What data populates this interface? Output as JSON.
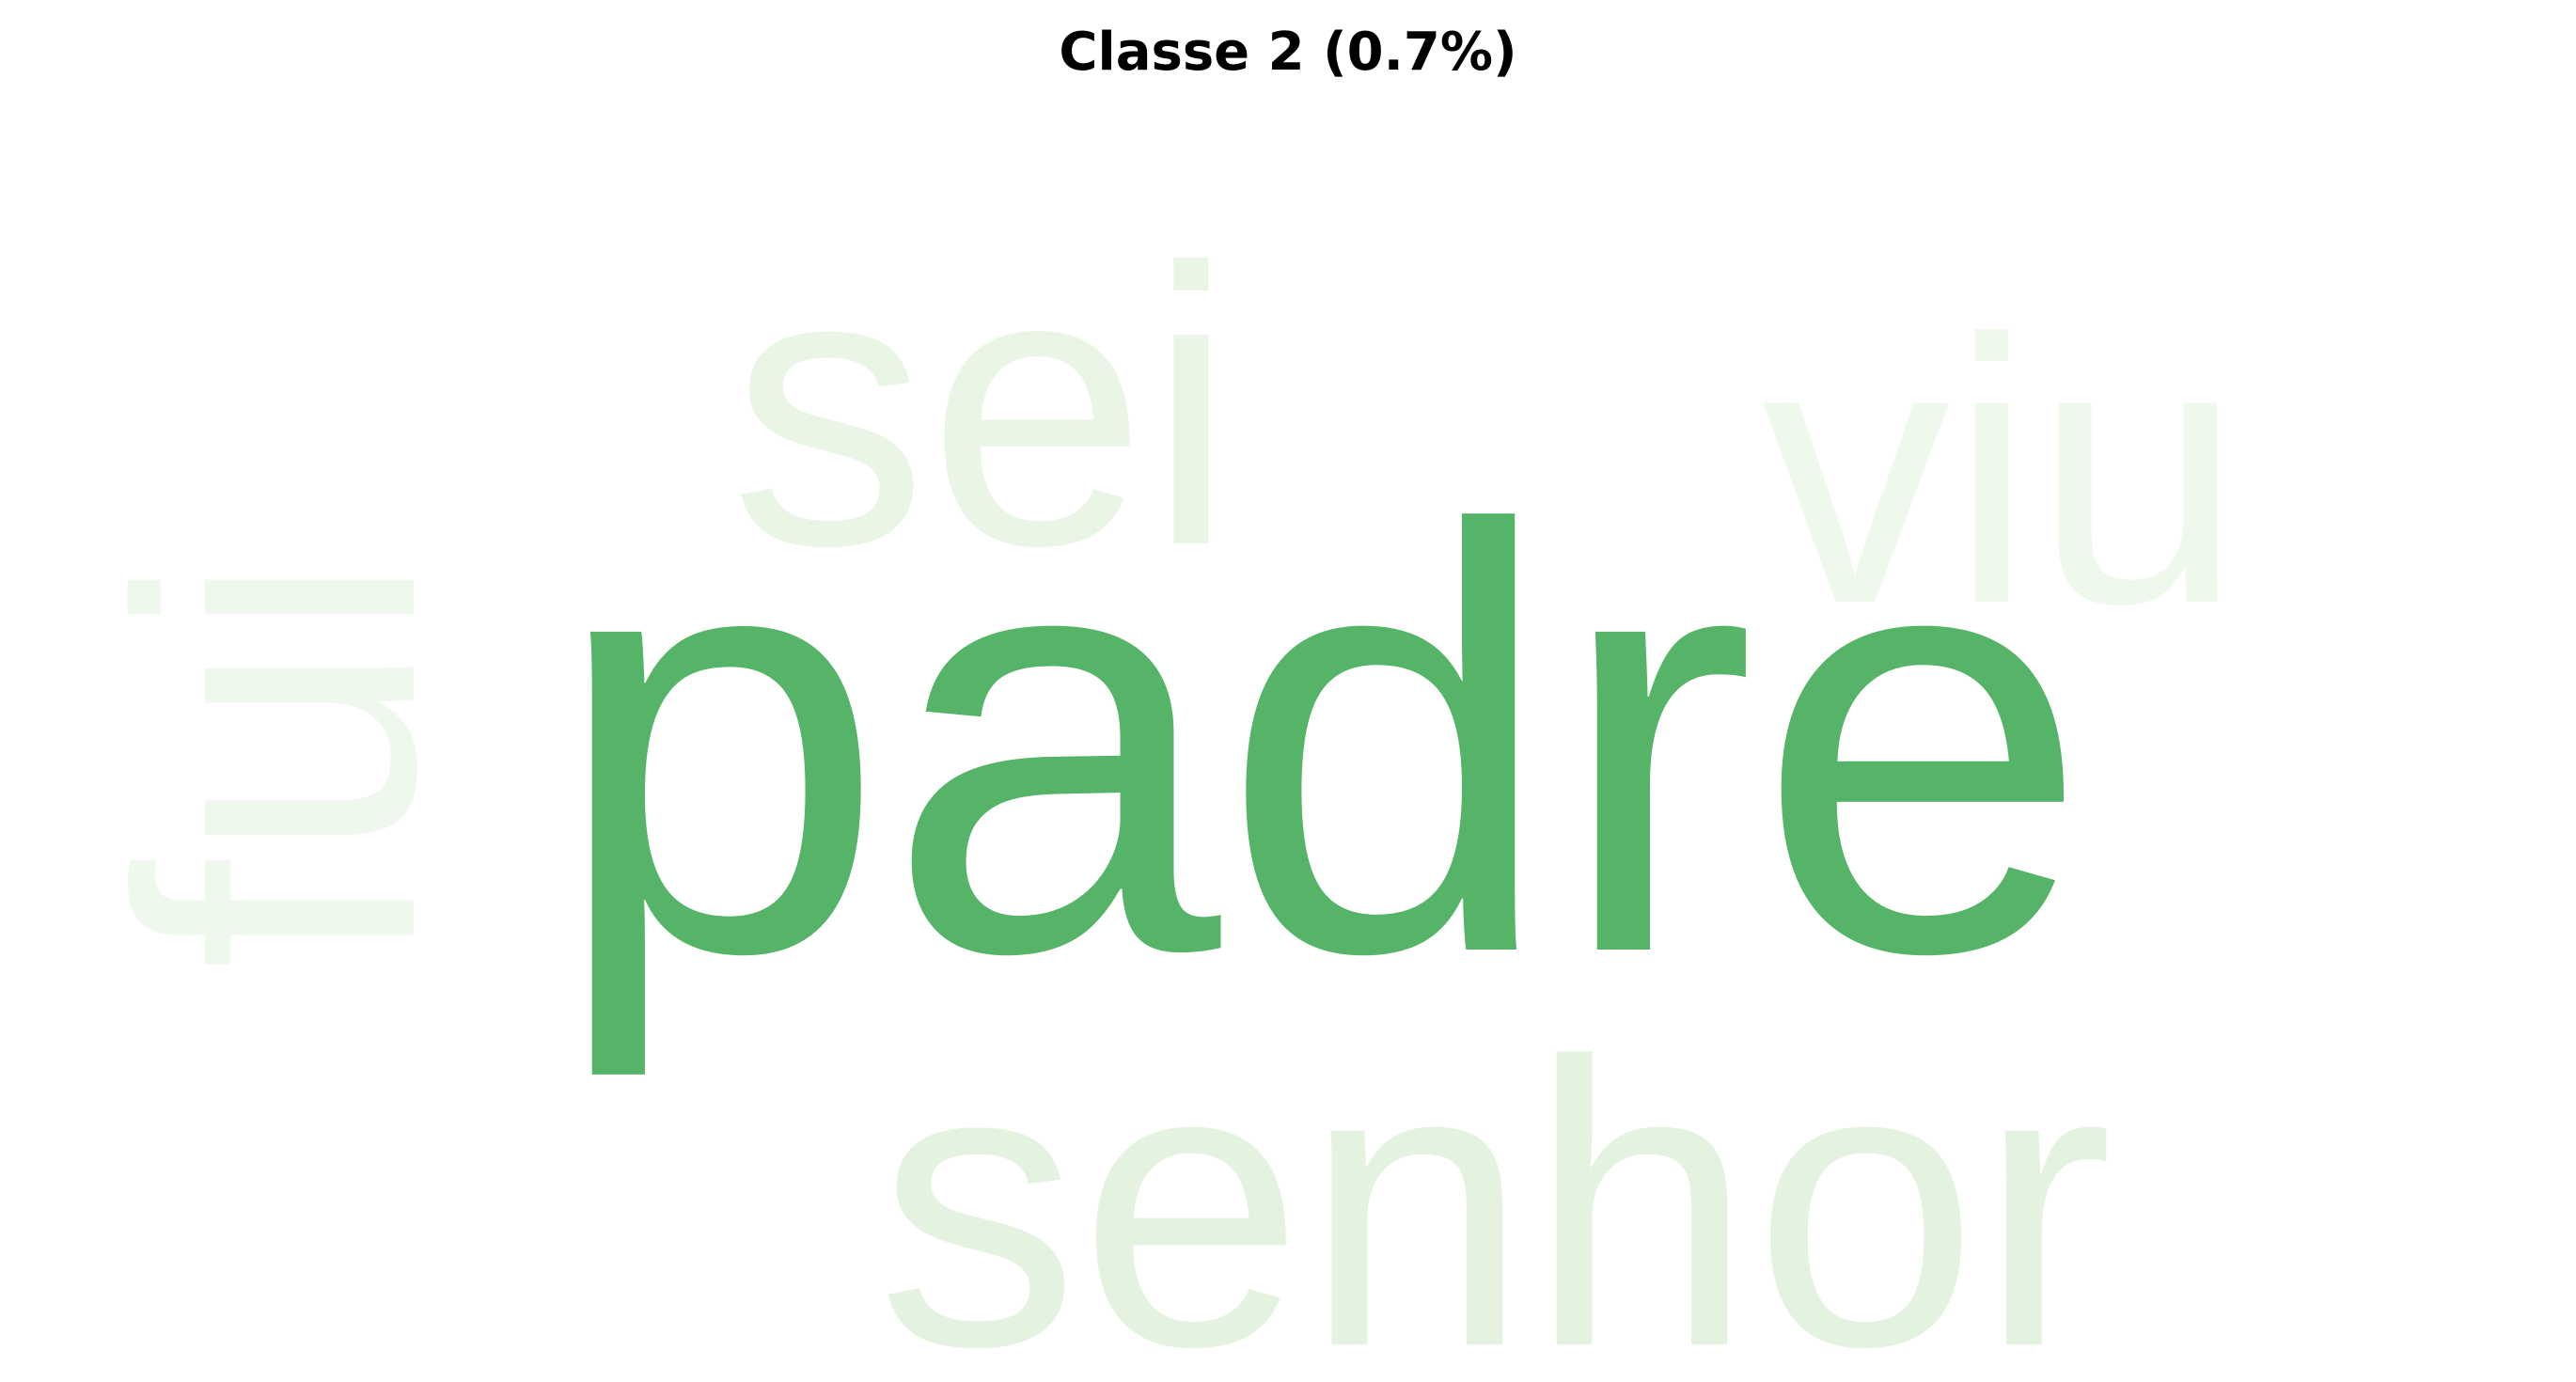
{
  "title": "Classe 2 (0.7%)",
  "words": [
    {
      "text": "padre",
      "weight": 1.0,
      "color": "#55b467",
      "orientation": "horizontal"
    },
    {
      "text": "senhor",
      "weight": 0.7,
      "color": "#e3f3e0",
      "orientation": "horizontal"
    },
    {
      "text": "sei",
      "weight": 0.55,
      "color": "#e9f6e6",
      "orientation": "horizontal"
    },
    {
      "text": "viu",
      "weight": 0.55,
      "color": "#eef8eb",
      "orientation": "horizontal"
    },
    {
      "text": "fui",
      "weight": 0.5,
      "color": "#eff8ed",
      "orientation": "vertical"
    }
  ]
}
